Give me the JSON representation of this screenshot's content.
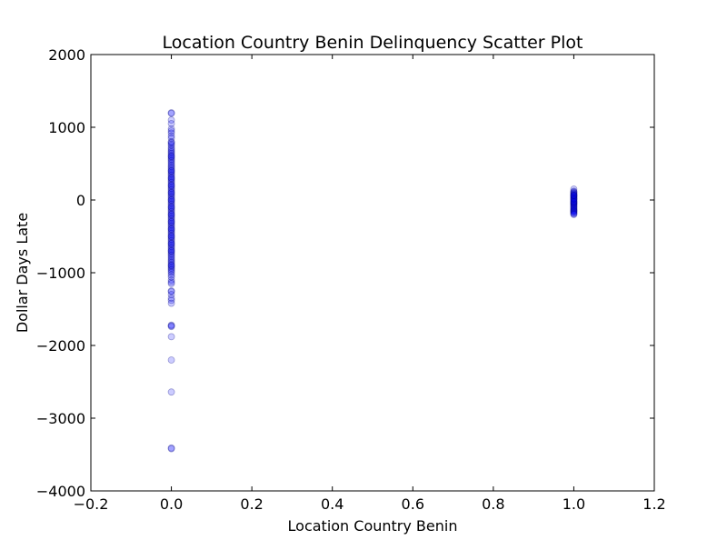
{
  "chart_data": {
    "type": "scatter",
    "title": "Location Country Benin Delinquency Scatter Plot",
    "xlabel": "Location Country Benin",
    "ylabel": "Dollar Days Late",
    "xlim": [
      -0.2,
      1.2
    ],
    "ylim": [
      -4000,
      2000
    ],
    "x_ticks": [
      -0.2,
      0.0,
      0.2,
      0.4,
      0.6,
      0.8,
      1.0,
      1.2
    ],
    "x_tick_labels": [
      "−0.2",
      "0.0",
      "0.2",
      "0.4",
      "0.6",
      "0.8",
      "1.0",
      "1.2"
    ],
    "y_ticks": [
      -4000,
      -3000,
      -2000,
      -1000,
      0,
      1000,
      2000
    ],
    "y_tick_labels": [
      "−4000",
      "−3000",
      "−2000",
      "−1000",
      "0",
      "1000",
      "2000"
    ],
    "grid": false,
    "marker_color": "#0000ff",
    "marker_opacity": 0.2,
    "series": [
      {
        "x": [
          0,
          0,
          0,
          0,
          0,
          0,
          0,
          0,
          0,
          0,
          0,
          0,
          0,
          0,
          0,
          0,
          0,
          0,
          0,
          0,
          0,
          0,
          0,
          0,
          0,
          0,
          0,
          0,
          0,
          0,
          0,
          0,
          0,
          0,
          0,
          0,
          0,
          0,
          0,
          0,
          0,
          0,
          0,
          0,
          0,
          0,
          0,
          0,
          0,
          0,
          0,
          0,
          0,
          0,
          0,
          0,
          0,
          0,
          0,
          0,
          0,
          0,
          0,
          0,
          0,
          0,
          0,
          0,
          0,
          0,
          0,
          0,
          0,
          0,
          0,
          0,
          0,
          0,
          0,
          0,
          0,
          0,
          0,
          0,
          0,
          0,
          0,
          0,
          0,
          0,
          0,
          0,
          0,
          0,
          0,
          0,
          0,
          0,
          0,
          0,
          0,
          0,
          0,
          0,
          0,
          0,
          0,
          0,
          0,
          0,
          0,
          0,
          0,
          0,
          0,
          0,
          0,
          0,
          0,
          0,
          0,
          0,
          0,
          0,
          0,
          0,
          0,
          0,
          0,
          0,
          0,
          0,
          0,
          1,
          1,
          1,
          1,
          1,
          1,
          1,
          1,
          1,
          1,
          1,
          1,
          1,
          1,
          1,
          1,
          1,
          1,
          1,
          1,
          1,
          1,
          1,
          1,
          1,
          1,
          1,
          1,
          1,
          1,
          1,
          1,
          1,
          1,
          1,
          1,
          1,
          1,
          1,
          1
        ],
        "y": [
          1200,
          1190,
          1100,
          1050,
          980,
          950,
          920,
          880,
          850,
          800,
          790,
          770,
          750,
          720,
          700,
          680,
          660,
          640,
          620,
          600,
          580,
          560,
          540,
          520,
          500,
          480,
          460,
          440,
          420,
          400,
          380,
          360,
          340,
          320,
          300,
          280,
          260,
          240,
          220,
          200,
          180,
          160,
          140,
          120,
          100,
          80,
          60,
          40,
          20,
          0,
          -20,
          -40,
          -60,
          -80,
          -100,
          -120,
          -140,
          -160,
          -180,
          -200,
          -220,
          -240,
          -260,
          -280,
          -300,
          -320,
          -340,
          -360,
          -380,
          -400,
          -420,
          -440,
          -460,
          -480,
          -500,
          -520,
          -540,
          -560,
          -580,
          -600,
          -620,
          -640,
          -660,
          -680,
          -700,
          -720,
          -740,
          -760,
          -780,
          -800,
          -820,
          -840,
          -860,
          -880,
          -900,
          -920,
          -940,
          -960,
          -980,
          -1000,
          -1030,
          -1060,
          -1100,
          -1130,
          -1150,
          -1250,
          -1260,
          -1300,
          -1350,
          -1380,
          -1420,
          -1720,
          -1730,
          -1740,
          -1880,
          -2200,
          -2640,
          -3410,
          -3420,
          600,
          400,
          200,
          -200,
          -400,
          -600,
          -300,
          100,
          -100,
          0,
          300,
          -500,
          -700,
          -900,
          150,
          -150,
          -50,
          50,
          120,
          110,
          100,
          90,
          80,
          70,
          60,
          50,
          40,
          30,
          20,
          10,
          0,
          -10,
          -20,
          -30,
          -40,
          -50,
          -60,
          -70,
          -80,
          -90,
          -100,
          -110,
          -120,
          -130,
          -140,
          -150,
          -160,
          -170,
          -180,
          -190,
          -200,
          15,
          -25,
          65
        ]
      }
    ]
  }
}
